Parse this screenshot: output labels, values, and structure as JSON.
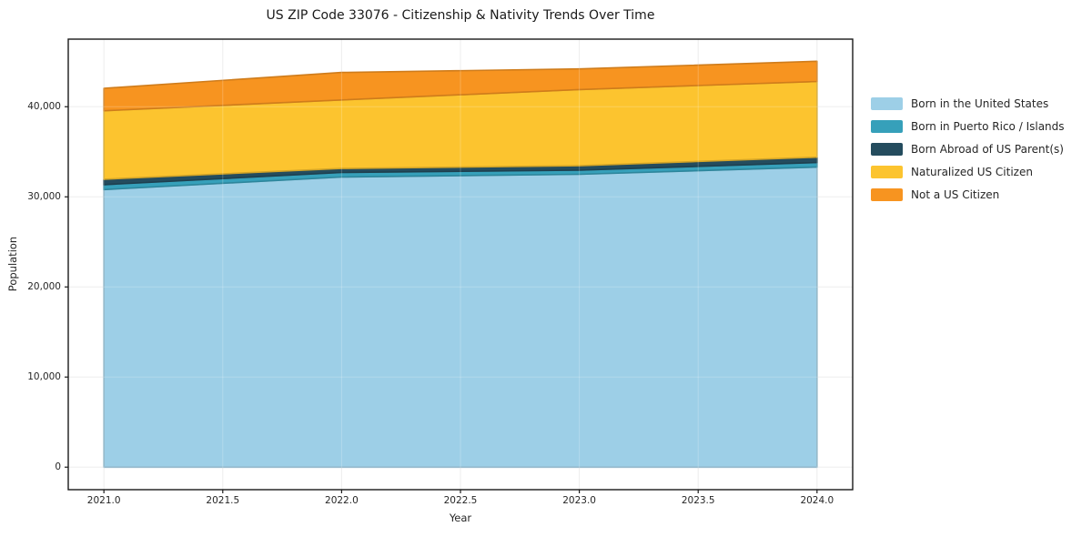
{
  "title": "US ZIP Code 33076 - Citizenship & Nativity Trends Over Time",
  "chart_data": {
    "type": "area",
    "stacked": true,
    "title": "US ZIP Code 33076 - Citizenship & Nativity Trends Over Time",
    "xlabel": "Year",
    "ylabel": "Population",
    "x": [
      2021,
      2022,
      2023,
      2024
    ],
    "series": [
      {
        "name": "Born in the United States",
        "color": "#9dcfe7",
        "values": [
          30800,
          32200,
          32500,
          33300
        ]
      },
      {
        "name": "Born in Puerto Rico / Islands",
        "color": "#36a0ba",
        "values": [
          550,
          500,
          450,
          500
        ]
      },
      {
        "name": "Born Abroad of US Parent(s)",
        "color": "#244c5e",
        "values": [
          600,
          450,
          500,
          600
        ]
      },
      {
        "name": "Naturalized US Citizen",
        "color": "#fcc42f",
        "values": [
          7600,
          7600,
          8450,
          8400
        ]
      },
      {
        "name": "Not a US Citizen",
        "color": "#f79420",
        "values": [
          2500,
          3050,
          2300,
          2250
        ]
      }
    ],
    "stack_totals": [
      42050,
      43800,
      44200,
      45050
    ],
    "xlim": [
      2020.85,
      2024.15
    ],
    "ylim": [
      -2500,
      47500
    ],
    "xticks": {
      "values": [
        2021,
        2021.5,
        2022,
        2022.5,
        2023,
        2023.5,
        2024
      ],
      "labels": [
        "2021.0",
        "2021.5",
        "2022.0",
        "2022.5",
        "2023.0",
        "2023.5",
        "2024.0"
      ]
    },
    "yticks": {
      "values": [
        0,
        10000,
        20000,
        30000,
        40000
      ],
      "labels": [
        "0",
        "10,000",
        "20,000",
        "30,000",
        "40,000"
      ]
    },
    "grid": true,
    "grid_color": "#e9e9e9",
    "spine_color": "#1a1a1a",
    "legend_position": "right"
  }
}
